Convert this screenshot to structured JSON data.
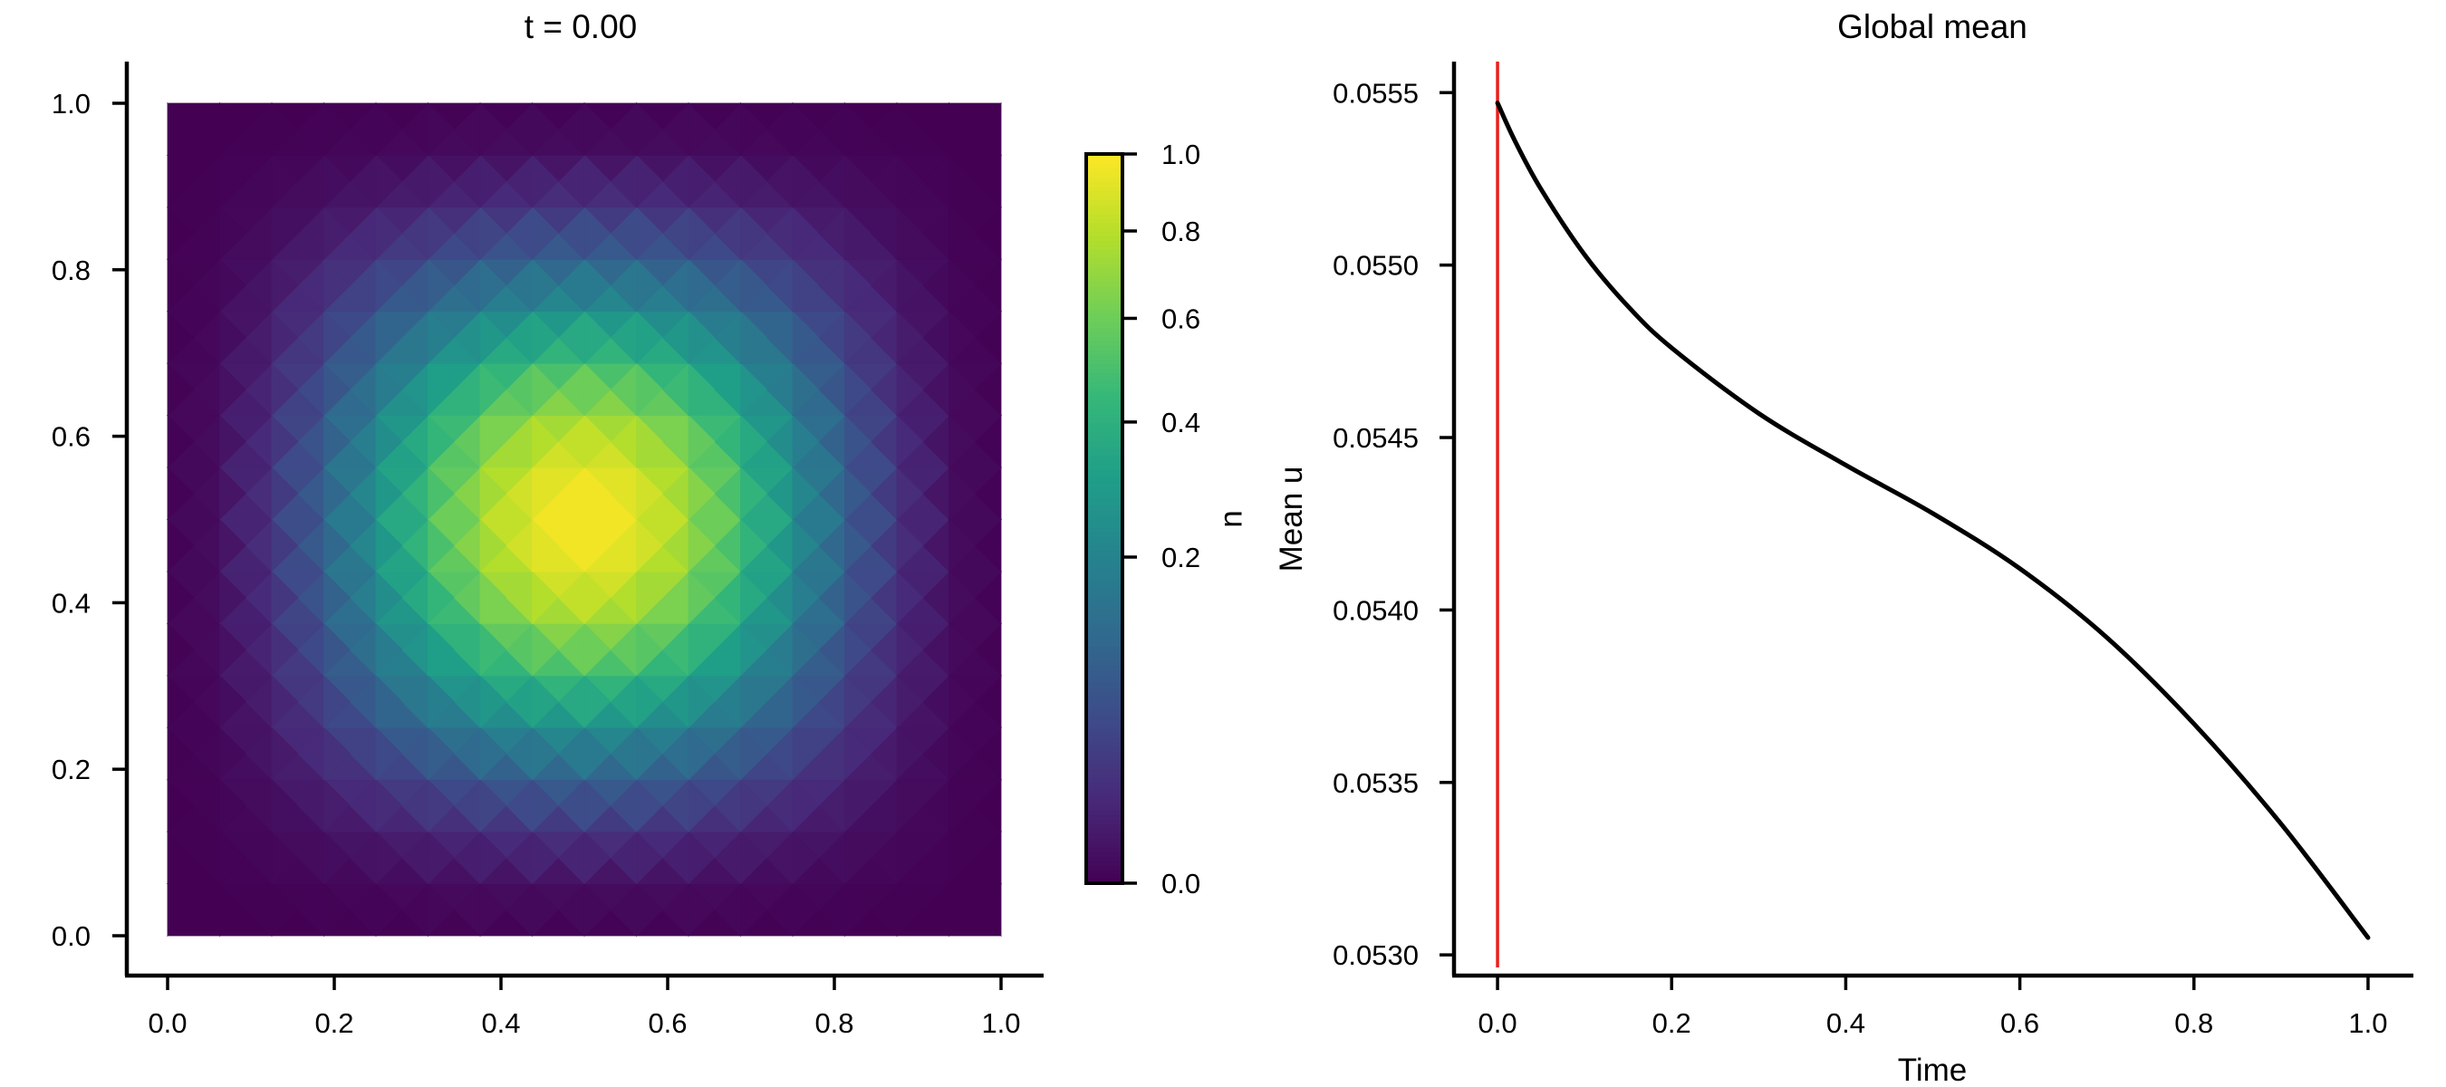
{
  "chart_data": [
    {
      "type": "heatmap",
      "title": "t = 0.00",
      "xlim": [
        0.0,
        1.0
      ],
      "ylim": [
        0.0,
        1.0
      ],
      "xticks": [
        "0.0",
        "0.2",
        "0.4",
        "0.6",
        "0.8",
        "1.0"
      ],
      "yticks": [
        "0.0",
        "0.2",
        "0.4",
        "0.6",
        "0.8",
        "1.0"
      ],
      "field": "u(x, y) = (sin(pi x) sin(pi y))^4 on a triangulated 16x16 mesh (piecewise-linear, shown as flat-shaded triangles)",
      "peak": {
        "x": 0.5,
        "y": 0.5,
        "value": 1.0
      },
      "colormap": "viridis",
      "colorbar": {
        "label": "u",
        "scale": "sqrt",
        "range": [
          0.0,
          1.0
        ],
        "ticks": [
          "0.0",
          "0.2",
          "0.4",
          "0.6",
          "0.8",
          "1.0"
        ]
      },
      "grid": false
    },
    {
      "type": "line",
      "title": "Global mean",
      "xlabel": "Time",
      "ylabel": "Mean u",
      "xlim": [
        -0.05,
        1.05
      ],
      "ylim": [
        0.05294,
        0.05559
      ],
      "xticks": [
        "0.0",
        "0.2",
        "0.4",
        "0.6",
        "0.8",
        "1.0"
      ],
      "yticks": [
        "0.0530",
        "0.0535",
        "0.0540",
        "0.0545",
        "0.0550",
        "0.0555"
      ],
      "series": [
        {
          "color": "#000000",
          "x": [
            0.0,
            0.02,
            0.05,
            0.1,
            0.15,
            0.2,
            0.3,
            0.4,
            0.5,
            0.6,
            0.7,
            0.8,
            0.9,
            1.0
          ],
          "y": [
            0.05547,
            0.05536,
            0.05522,
            0.05503,
            0.05488,
            0.05476,
            0.05457,
            0.05442,
            0.05428,
            0.05412,
            0.05392,
            0.05367,
            0.05338,
            0.05305
          ]
        }
      ],
      "markers": [
        {
          "type": "vertical-line",
          "x": 0.0,
          "color": "#e8201a"
        }
      ],
      "grid": false
    }
  ]
}
